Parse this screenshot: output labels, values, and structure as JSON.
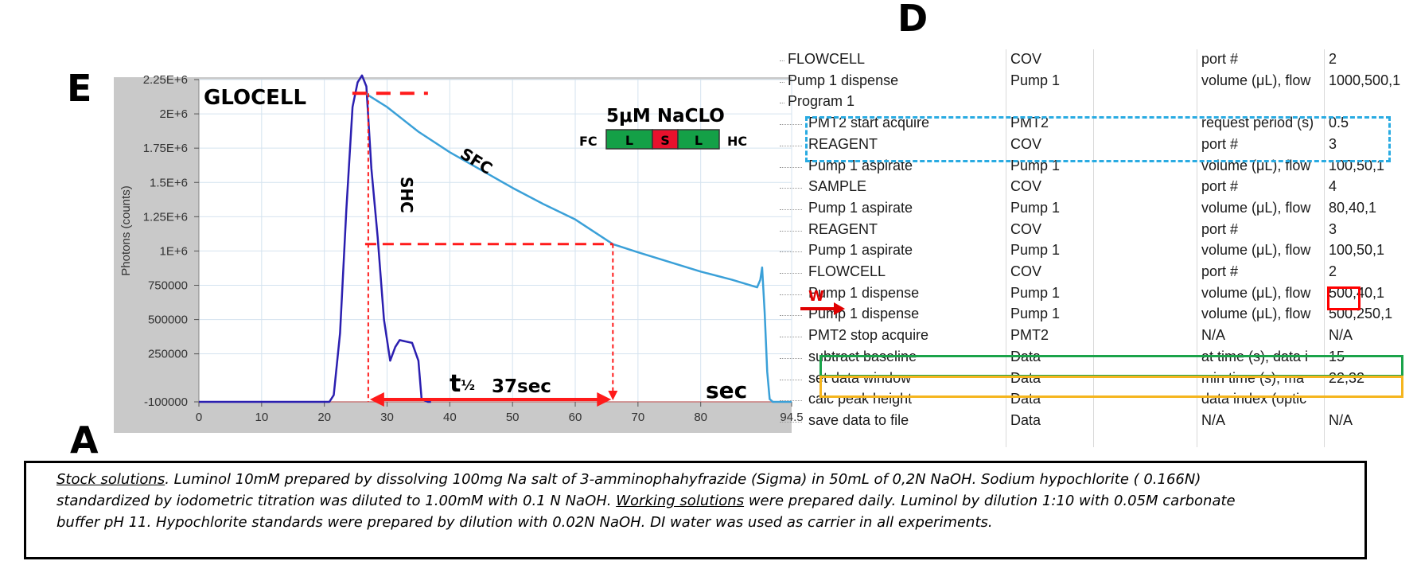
{
  "panel_letters": {
    "d": "D",
    "e": "E",
    "a": "A"
  },
  "chart_data": {
    "type": "line",
    "ylabel": "Photons (counts)",
    "xlabel": "sec",
    "xlim": [
      0,
      94.5
    ],
    "ylim": [
      -100000,
      2250000
    ],
    "x_ticks": [
      "0",
      "10",
      "20",
      "30",
      "40",
      "50",
      "60",
      "70",
      "80",
      "94.5"
    ],
    "y_ticks": [
      "2.25E+6",
      "2E+6",
      "1.75E+6",
      "1.5E+6",
      "1.25E+6",
      "1E+6",
      "750000",
      "500000",
      "250000",
      "-100000"
    ],
    "grid": true,
    "series": [
      {
        "name": "SHC",
        "color": "#2b1fb0",
        "x": [
          0,
          20.8,
          21.5,
          22.5,
          23.5,
          24.5,
          25.3,
          26,
          26.7,
          27.5,
          28.5,
          29.5,
          30.5,
          31.3,
          32,
          33,
          34,
          35,
          35.5,
          36.5,
          37
        ],
        "y": [
          -100000,
          -100000,
          -50000,
          400000,
          1300000,
          2050000,
          2230000,
          2280000,
          2200000,
          1600000,
          1100000,
          500000,
          200000,
          300000,
          350000,
          340000,
          330000,
          200000,
          -80000,
          -100000,
          -100000
        ]
      },
      {
        "name": "SFC",
        "color": "#3aa0d8",
        "x": [
          26.5,
          30,
          35,
          40,
          45,
          50,
          55,
          60,
          66,
          70,
          75,
          80,
          85,
          89,
          89.5,
          89.8,
          90.2,
          90.6,
          91,
          91.5,
          92,
          94.5
        ],
        "y": [
          2150000,
          2050000,
          1870000,
          1720000,
          1590000,
          1460000,
          1340000,
          1230000,
          1050000,
          990000,
          920000,
          850000,
          790000,
          735000,
          790000,
          880000,
          550000,
          120000,
          -80000,
          -100000,
          -100000,
          -100000
        ]
      }
    ],
    "annotations": {
      "title_label": "GLOCELL",
      "reagent": "5μM NaCLO",
      "fc": "FC",
      "hc": "HC",
      "seg_l1": "L",
      "seg_s": "S",
      "seg_l2": "L",
      "sfc_label": "SFC",
      "shc_label": "SHC",
      "t_half_symbol": "t",
      "t_half_sub": "½",
      "t_half_value": "37sec",
      "sec_label": "sec",
      "peak_x": 27,
      "half_x": 66,
      "half_y": 1050000
    },
    "colors": {
      "shc": "#2b1fb0",
      "sfc": "#3aa0d8",
      "marker": "#ff1a1a",
      "l_green": "#14a047",
      "s_red": "#e8112d"
    }
  },
  "table": {
    "rows": [
      {
        "c1": "FLOWCELL",
        "c2": "COV",
        "c3": "port #",
        "c4": "2",
        "indent": 0
      },
      {
        "c1": "Pump 1 dispense",
        "c2": "Pump 1",
        "c3": "volume (μL), flow",
        "c4": "1000,500,1",
        "indent": 0
      },
      {
        "c1": "Program 1",
        "c2": "",
        "c3": "",
        "c4": "",
        "indent": 0
      },
      {
        "c1": "PMT2 start acquire",
        "c2": "PMT2",
        "c3": "request period (s)",
        "c4": "0.5",
        "indent": 1
      },
      {
        "c1": "REAGENT",
        "c2": "COV",
        "c3": "port #",
        "c4": "3",
        "indent": 1
      },
      {
        "c1": "Pump 1 aspirate",
        "c2": "Pump 1",
        "c3": "volume (μL), flow",
        "c4": "100,50,1",
        "indent": 1
      },
      {
        "c1": "SAMPLE",
        "c2": "COV",
        "c3": "port #",
        "c4": "4",
        "indent": 1
      },
      {
        "c1": "Pump 1 aspirate",
        "c2": "Pump 1",
        "c3": "volume (μL), flow",
        "c4": "80,40,1",
        "indent": 1
      },
      {
        "c1": "REAGENT",
        "c2": "COV",
        "c3": "port #",
        "c4": "3",
        "indent": 1
      },
      {
        "c1": "Pump 1 aspirate",
        "c2": "Pump 1",
        "c3": "volume (μL), flow",
        "c4": "100,50,1",
        "indent": 1
      },
      {
        "c1": "FLOWCELL",
        "c2": "COV",
        "c3": "port #",
        "c4": "2",
        "indent": 1
      },
      {
        "c1": "Pump 1 dispense",
        "c2": "Pump 1",
        "c3": "volume (μL), flow",
        "c4": "500,40,1",
        "indent": 1
      },
      {
        "c1": "Pump 1 dispense",
        "c2": "Pump 1",
        "c3": "volume (μL), flow",
        "c4": "500,250,1",
        "indent": 1
      },
      {
        "c1": "PMT2 stop acquire",
        "c2": "PMT2",
        "c3": "N/A",
        "c4": "N/A",
        "indent": 1
      },
      {
        "c1": "subtract baseline",
        "c2": "Data",
        "c3": "at time (s), data i",
        "c4": "15",
        "indent": 1
      },
      {
        "c1": "set data window",
        "c2": "Data",
        "c3": "min time (s), ma",
        "c4": "22,32",
        "indent": 1
      },
      {
        "c1": "calc peak height",
        "c2": "Data",
        "c3": "data index (optic",
        "c4": "",
        "indent": 1
      },
      {
        "c1": "save data to file",
        "c2": "Data",
        "c3": "N/A",
        "c4": "N/A",
        "indent": 1
      }
    ],
    "w_marker": "W",
    "highlight_colors": {
      "blue": "#29abe2",
      "green": "#1aa34a",
      "yellow": "#f5b51e",
      "red": "#ff0000"
    }
  },
  "notes": {
    "line1_u": "Stock solutions",
    "line1_rest": ". Luminol 10mM prepared by dissolving 100mg Na salt of 3-amminophahyfrazide (Sigma) in 50mL of 0,2N NaOH.  Sodium hypochlorite ( 0.166N)",
    "line2_a": "standardized by iodometric titration was diluted to 1.00mM with 0.1 N NaOH. ",
    "line2_u": "Working solutions",
    "line2_b": "  were prepared daily. Luminol by dilution 1:10 with 0.05M carbonate",
    "line3": "buffer pH 11. Hypochlorite standards were prepared by dilution with 0.02N NaOH. DI water was used as carrier in all experiments."
  }
}
